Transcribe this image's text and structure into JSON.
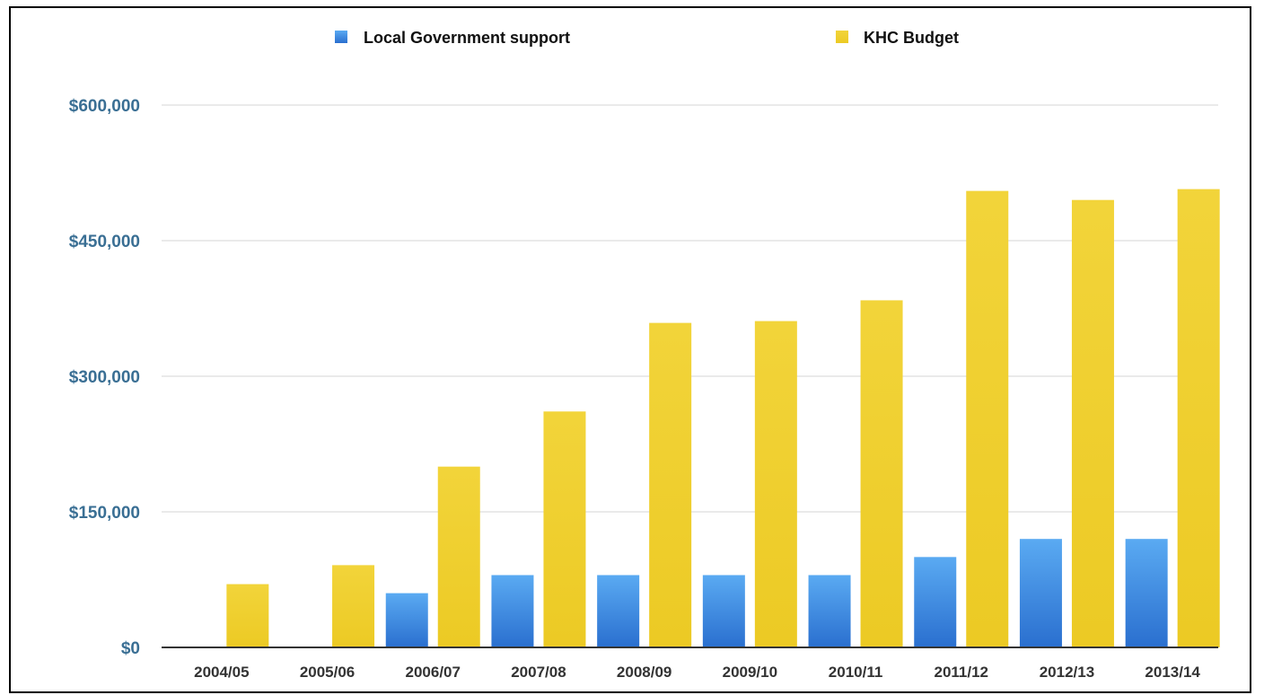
{
  "chart_data": {
    "type": "bar",
    "title": "",
    "xlabel": "",
    "ylabel": "",
    "categories": [
      "2004/05",
      "2005/06",
      "2006/07",
      "2007/08",
      "2008/09",
      "2009/10",
      "2010/11",
      "2011/12",
      "2012/13",
      "2013/14"
    ],
    "series": [
      {
        "name": "Local Government support",
        "color": "#3d8ee6",
        "values": [
          0,
          0,
          60000,
          80000,
          80000,
          80000,
          80000,
          100000,
          120000,
          120000
        ]
      },
      {
        "name": "KHC Budget",
        "color": "#f0d030",
        "values": [
          70000,
          91000,
          200000,
          261000,
          359000,
          361000,
          384000,
          505000,
          495000,
          507000
        ]
      }
    ],
    "ylim": [
      0,
      600000
    ],
    "yticks": [
      0,
      150000,
      300000,
      450000,
      600000
    ],
    "ytick_labels": [
      "$0",
      "$150,000",
      "$300,000",
      "$450,000",
      "$600,000"
    ],
    "ytick_color": "#3a6f94",
    "grid": true,
    "legend_position": "top-center"
  }
}
